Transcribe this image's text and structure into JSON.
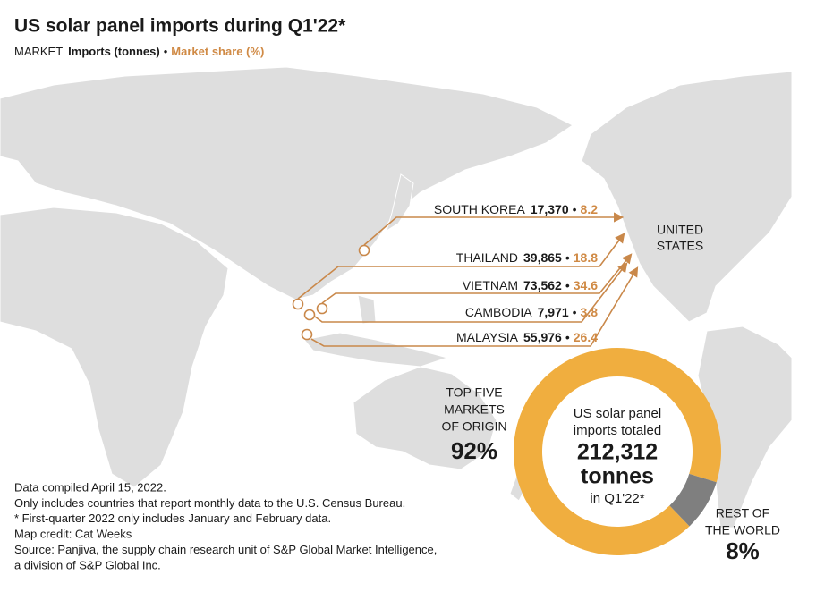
{
  "header": {
    "title": "US solar panel imports during Q1'22*",
    "legend": {
      "market": "MARKET",
      "imports": "Imports (tonnes)",
      "share": "Market share (%)"
    }
  },
  "separator": "•",
  "destination": [
    "UNITED",
    "STATES"
  ],
  "markets": [
    {
      "name": "SOUTH KOREA",
      "imports": "17,370",
      "share": "8.2"
    },
    {
      "name": "THAILAND",
      "imports": "39,865",
      "share": "18.8"
    },
    {
      "name": "VIETNAM",
      "imports": "73,562",
      "share": "34.6"
    },
    {
      "name": "CAMBODIA",
      "imports": "7,971",
      "share": "3.8"
    },
    {
      "name": "MALAYSIA",
      "imports": "55,976",
      "share": "26.4"
    }
  ],
  "donut": {
    "center": [
      "US solar panel",
      "imports totaled",
      "212,312",
      "tonnes",
      "in Q1'22*"
    ],
    "segments": [
      {
        "label": [
          "TOP FIVE",
          "MARKETS",
          "OF ORIGIN"
        ],
        "value": 92,
        "value_label": "92%",
        "color": "#f0ae3f"
      },
      {
        "label": [
          "REST OF",
          "THE WORLD"
        ],
        "value": 8,
        "value_label": "8%",
        "color": "#7f7f7f"
      }
    ]
  },
  "notes": [
    "Data compiled April 15, 2022.",
    "Only includes countries that report monthly data to the U.S. Census Bureau.",
    "* First-quarter 2022 only includes January and February data.",
    "Map credit: Cat Weeks",
    "Source: Panjiva, the supply chain research unit of S&P Global Market Intelligence,",
    "a division of S&P Global Inc."
  ]
}
